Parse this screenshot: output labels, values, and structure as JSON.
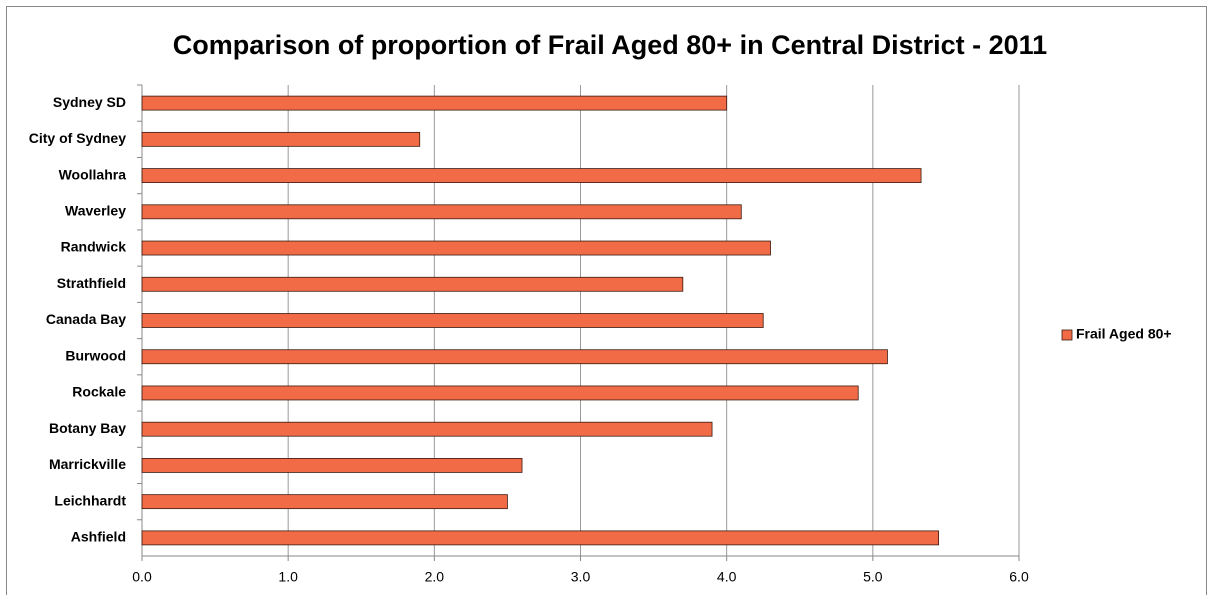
{
  "chart_data": {
    "type": "bar",
    "orientation": "horizontal",
    "title": "Comparison of proportion of Frail Aged 80+ in Central District - 2011",
    "categories": [
      "Sydney SD",
      "City of Sydney",
      "Woollahra",
      "Waverley",
      "Randwick",
      "Strathfield",
      "Canada Bay",
      "Burwood",
      "Rockale",
      "Botany Bay",
      "Marrickville",
      "Leichhardt",
      "Ashfield"
    ],
    "series": [
      {
        "name": "Frail Aged 80+",
        "color": "#f26b47",
        "values": [
          4.0,
          1.9,
          5.33,
          4.1,
          4.3,
          3.7,
          4.25,
          5.1,
          4.9,
          3.9,
          2.6,
          2.5,
          5.45
        ]
      }
    ],
    "xlim": [
      0,
      6
    ],
    "xticks": [
      {
        "value": 0,
        "label": "0.0"
      },
      {
        "value": 1,
        "label": "1.0"
      },
      {
        "value": 2,
        "label": "2.0"
      },
      {
        "value": 3,
        "label": "3.0"
      },
      {
        "value": 4,
        "label": "4.0"
      },
      {
        "value": 5,
        "label": "5.0"
      },
      {
        "value": 6,
        "label": "6.0"
      }
    ],
    "grid": true,
    "legend": "right"
  }
}
